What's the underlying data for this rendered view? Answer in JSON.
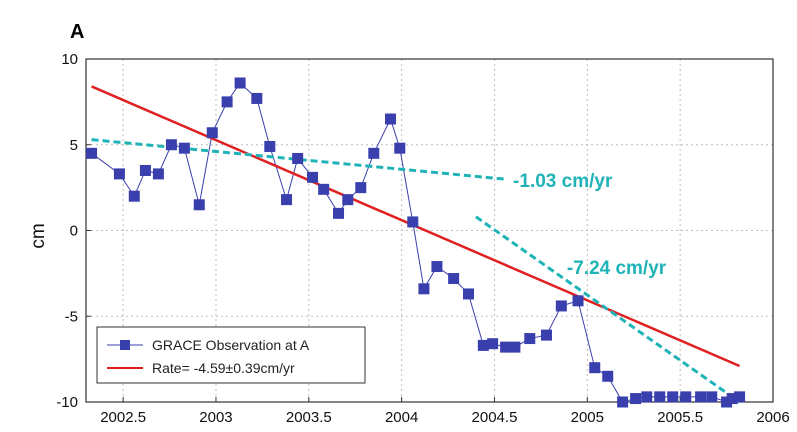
{
  "chart_data": {
    "type": "line",
    "panel_label": "A",
    "title": "",
    "xlabel": "",
    "ylabel": "cm",
    "xlim": [
      2002.3,
      2006.0
    ],
    "ylim": [
      -10,
      10
    ],
    "xticks": [
      2002.5,
      2003,
      2003.5,
      2004,
      2004.5,
      2005,
      2005.5,
      2006
    ],
    "xtick_labels": [
      "2002.5",
      "2003",
      "2003.5",
      "2004",
      "2004.5",
      "2005",
      "2005.5",
      "2006"
    ],
    "yticks": [
      10,
      5,
      0,
      -5,
      -10
    ],
    "ytick_labels": [
      "10",
      "5",
      "0",
      "-5",
      "-10"
    ],
    "grid": true,
    "legend_position": "bottom-left",
    "colors": {
      "observation": "#3a3fae",
      "rate_line": "#e02020",
      "trend": "#1fb3b8",
      "grid": "#bdbdbd"
    },
    "series": [
      {
        "name": "GRACE Observation at A",
        "style": "line-markers",
        "x": [
          2002.33,
          2002.48,
          2002.56,
          2002.62,
          2002.69,
          2002.76,
          2002.83,
          2002.91,
          2002.98,
          2003.06,
          2003.13,
          2003.22,
          2003.29,
          2003.38,
          2003.44,
          2003.52,
          2003.58,
          2003.66,
          2003.71,
          2003.78,
          2003.85,
          2003.94,
          2003.99,
          2004.06,
          2004.12,
          2004.19,
          2004.28,
          2004.36,
          2004.44,
          2004.49,
          2004.56,
          2004.61,
          2004.69,
          2004.78,
          2004.86,
          2004.95,
          2005.04,
          2005.11,
          2005.19,
          2005.26,
          2005.32,
          2005.39,
          2005.46,
          2005.53,
          2005.61,
          2005.67,
          2005.75,
          2005.78,
          2005.82
        ],
        "values": [
          4.5,
          3.3,
          2.0,
          3.5,
          3.3,
          5.0,
          4.8,
          1.5,
          5.7,
          7.5,
          8.6,
          7.7,
          4.9,
          1.8,
          4.2,
          3.1,
          2.4,
          1.0,
          1.8,
          2.5,
          4.5,
          6.5,
          4.8,
          0.5,
          -3.4,
          -2.1,
          -2.8,
          -3.7,
          -6.7,
          -6.6,
          -6.8,
          -6.8,
          -6.3,
          -6.1,
          -4.4,
          -4.1,
          -8.0,
          -8.5,
          -10.0,
          -9.8,
          -9.7,
          -9.7,
          -9.7,
          -9.7,
          -9.7,
          -9.7,
          -10.0,
          -9.8,
          -9.7
        ]
      },
      {
        "name": "Rate= -4.59±0.39cm/yr",
        "style": "line",
        "x": [
          2002.33,
          2005.82
        ],
        "values": [
          8.4,
          -7.9
        ]
      },
      {
        "name": "",
        "style": "dashed",
        "x": [
          2002.33,
          2004.55
        ],
        "values": [
          5.3,
          3.0
        ]
      },
      {
        "name": "",
        "style": "dashed",
        "x": [
          2004.4,
          2005.82
        ],
        "values": [
          0.8,
          -10.0
        ]
      }
    ],
    "annotations": [
      {
        "text": "-1.03 cm/yr",
        "x": 2004.6,
        "y": 2.9
      },
      {
        "text": "-7.24 cm/yr",
        "x": 2004.89,
        "y": -2.2
      }
    ],
    "legend": [
      {
        "label": "GRACE Observation at A",
        "symbol": "marker-line"
      },
      {
        "label": "Rate= -4.59±0.39cm/yr",
        "symbol": "line"
      }
    ]
  }
}
